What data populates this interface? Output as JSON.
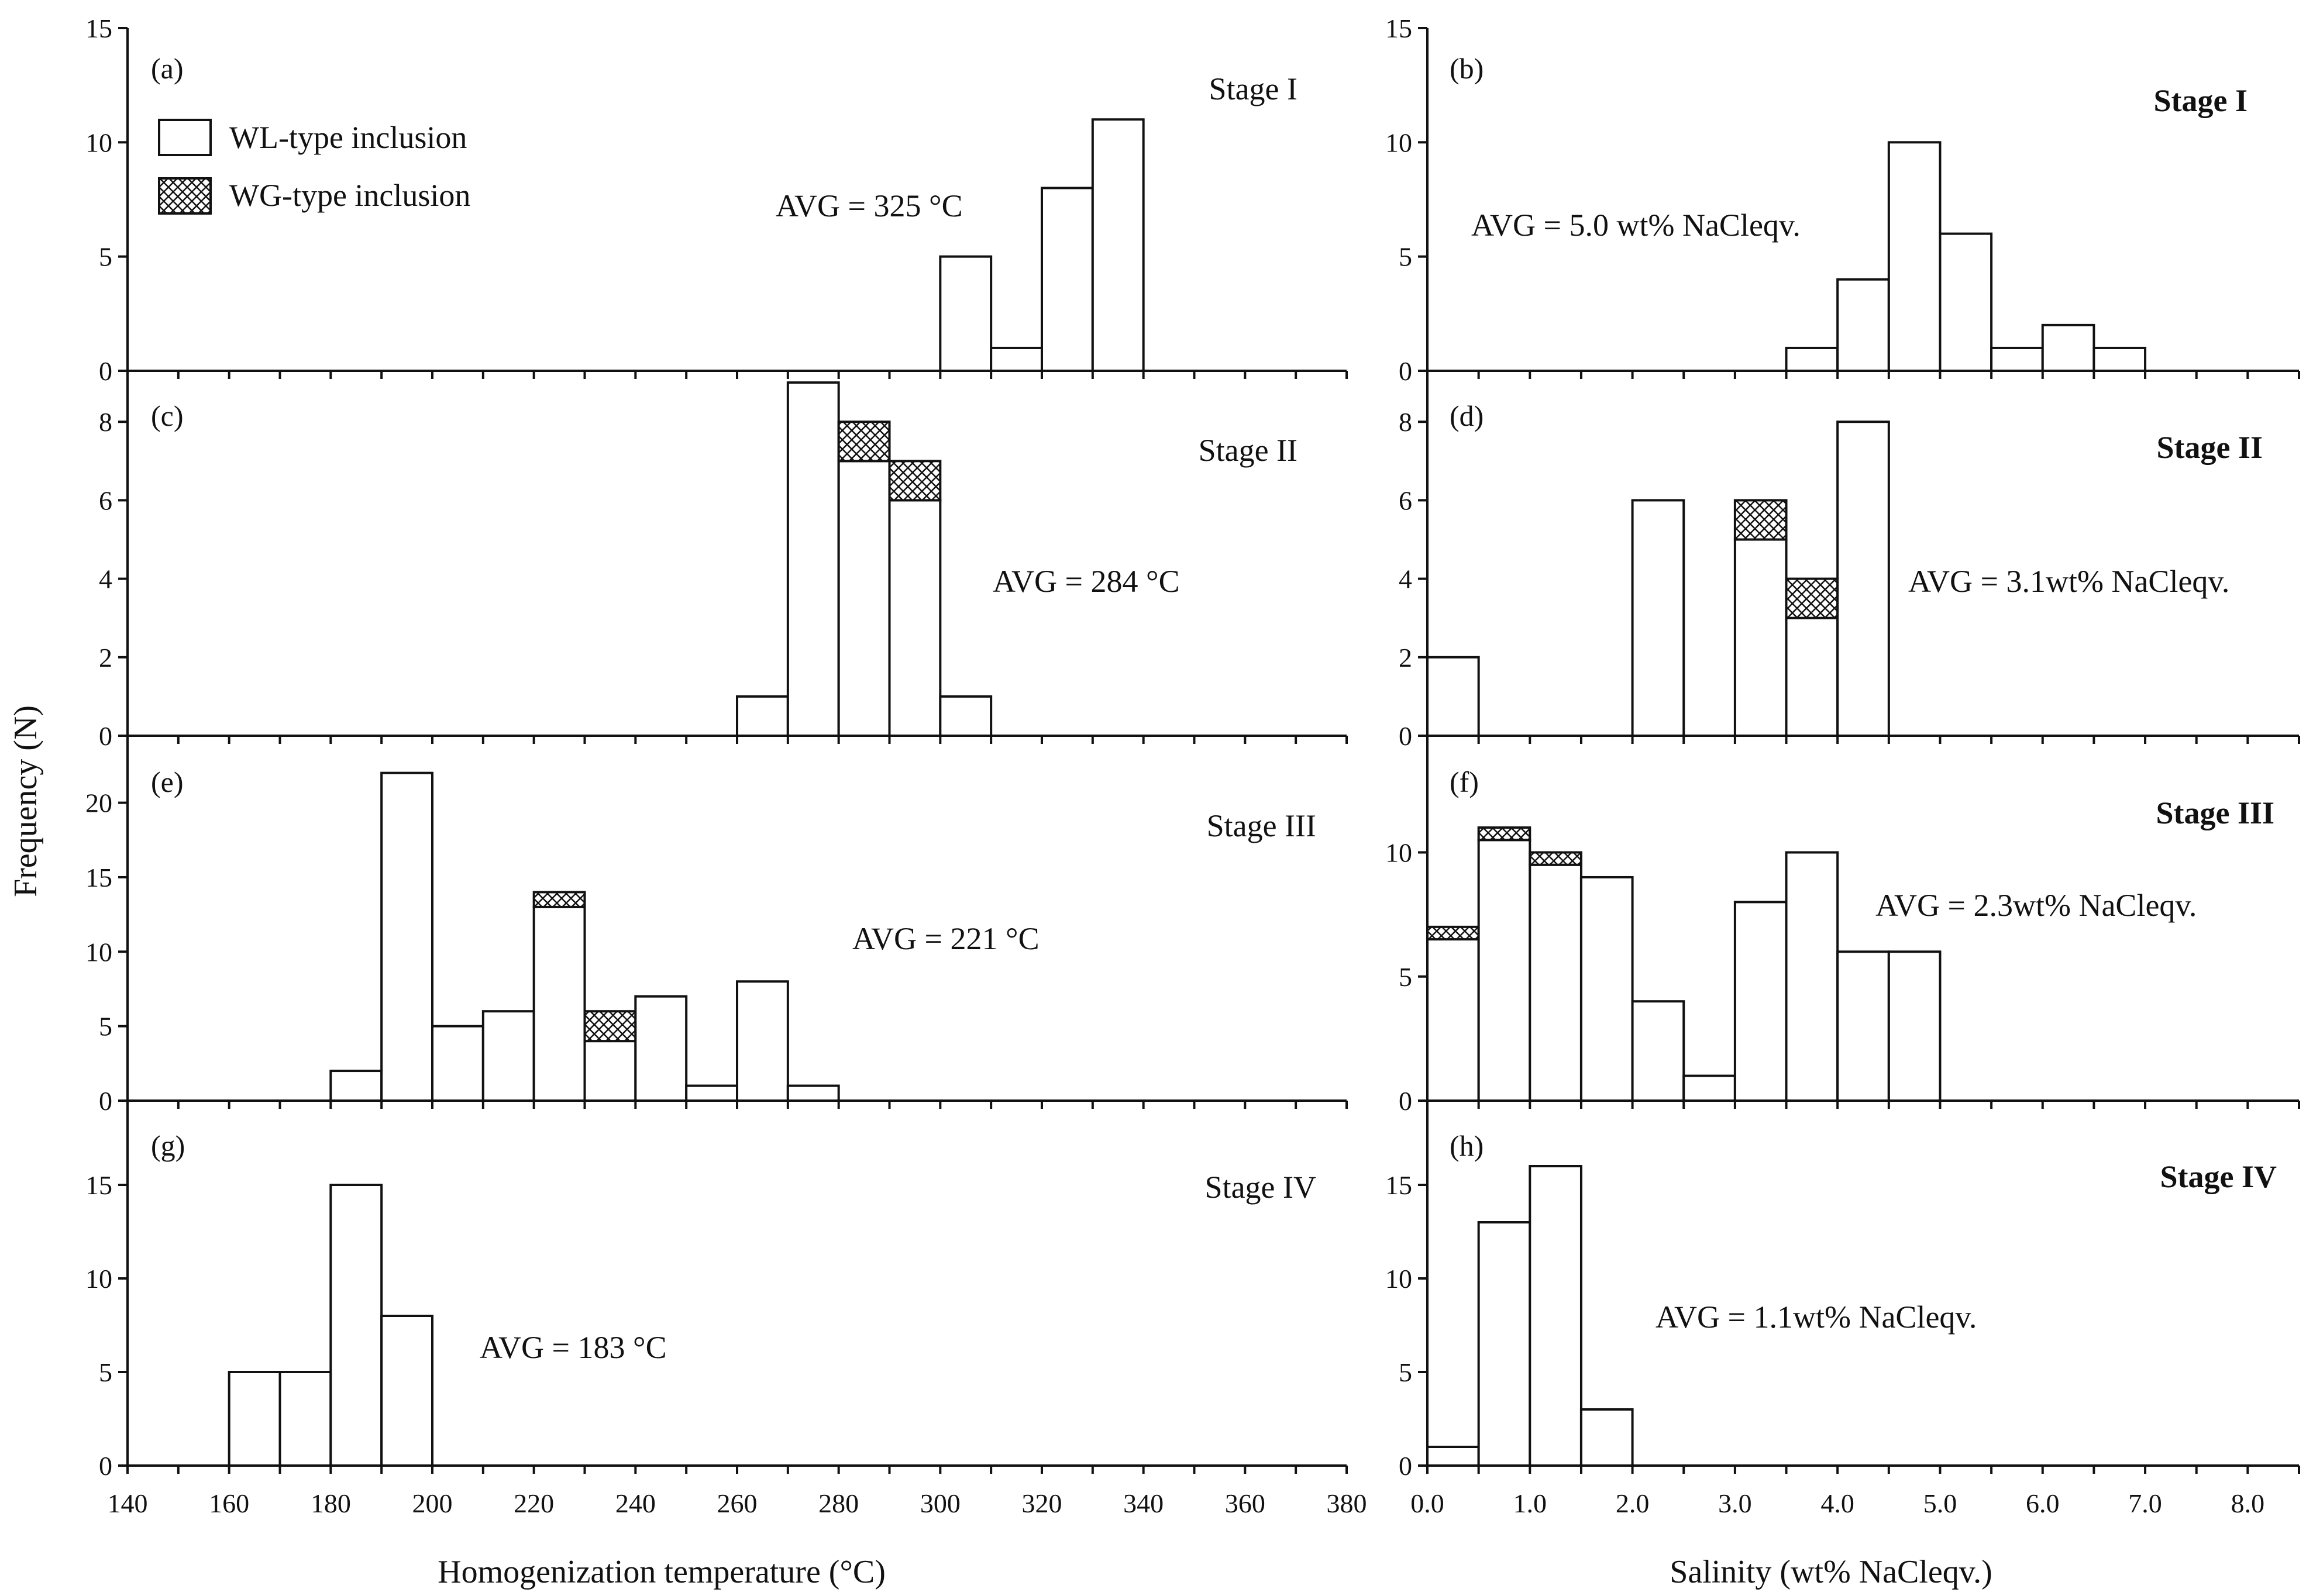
{
  "colors": {
    "ink": "#111111",
    "background": "#ffffff"
  },
  "legend": {
    "wl_label": "WL-type inclusion",
    "wg_label": "WG-type inclusion"
  },
  "axes": {
    "y_title": "Frequency (N)",
    "left_x_title": "Homogenization temperature (°C)",
    "right_x_title": "Salinity (wt% NaCleqv.)",
    "left_ticks": [
      140,
      160,
      180,
      200,
      220,
      240,
      260,
      280,
      300,
      320,
      340,
      360,
      380
    ],
    "right_ticks": [
      "0.0",
      "1.0",
      "2.0",
      "3.0",
      "4.0",
      "5.0",
      "6.0",
      "7.0",
      "8.0"
    ]
  },
  "chart_data": [
    {
      "id": "a",
      "type": "bar",
      "panel_label": "(a)",
      "stage": "Stage I",
      "avg_text": "AVG =  325 °C",
      "xlabel": "Homogenization temperature (°C)",
      "ylabel": "Frequency (N)",
      "xlim": [
        140,
        380
      ],
      "bin_width": 10,
      "ylim": [
        0,
        15
      ],
      "yticks": [
        0,
        5,
        10,
        15
      ],
      "series": [
        {
          "name": "WL-type inclusion",
          "bins": [
            [
              300,
              5
            ],
            [
              310,
              1
            ],
            [
              320,
              8
            ],
            [
              330,
              11
            ]
          ]
        },
        {
          "name": "WG-type inclusion",
          "bins": []
        }
      ]
    },
    {
      "id": "b",
      "type": "bar",
      "panel_label": "(b)",
      "stage": "Stage I",
      "avg_text": "AVG = 5.0 wt% NaCleqv.",
      "xlabel": "Salinity (wt% NaCleqv.)",
      "ylabel": "Frequency (N)",
      "xlim": [
        0,
        8.5
      ],
      "bin_width": 0.5,
      "ylim": [
        0,
        15
      ],
      "yticks": [
        0,
        5,
        10,
        15
      ],
      "series": [
        {
          "name": "WL-type inclusion",
          "bins": [
            [
              3.5,
              1
            ],
            [
              4.0,
              4
            ],
            [
              4.5,
              10
            ],
            [
              5.0,
              6
            ],
            [
              5.5,
              1
            ],
            [
              6.0,
              2
            ],
            [
              6.5,
              1
            ]
          ]
        },
        {
          "name": "WG-type inclusion",
          "bins": []
        }
      ]
    },
    {
      "id": "c",
      "type": "bar",
      "panel_label": "(c)",
      "stage": "Stage II",
      "avg_text": "AVG = 284 °C",
      "xlabel": "Homogenization temperature (°C)",
      "ylabel": "Frequency (N)",
      "xlim": [
        140,
        380
      ],
      "bin_width": 10,
      "ylim": [
        0,
        9.3
      ],
      "yticks": [
        0,
        2,
        4,
        6,
        8
      ],
      "series": [
        {
          "name": "WL-type inclusion",
          "bins": [
            [
              260,
              1
            ],
            [
              270,
              9
            ],
            [
              280,
              7
            ],
            [
              290,
              6
            ],
            [
              300,
              1
            ]
          ]
        },
        {
          "name": "WG-type inclusion",
          "bins": [
            [
              280,
              1
            ],
            [
              290,
              1
            ]
          ]
        }
      ]
    },
    {
      "id": "d",
      "type": "bar",
      "panel_label": "(d)",
      "stage": "Stage II",
      "avg_text": "AVG = 3.1wt% NaCleqv.",
      "xlabel": "Salinity (wt% NaCleqv.)",
      "ylabel": "Frequency (N)",
      "xlim": [
        0,
        8.5
      ],
      "bin_width": 0.5,
      "ylim": [
        0,
        9.3
      ],
      "yticks": [
        0,
        2,
        4,
        6,
        8
      ],
      "series": [
        {
          "name": "WL-type inclusion",
          "bins": [
            [
              0.0,
              2
            ],
            [
              2.0,
              6
            ],
            [
              3.0,
              5
            ],
            [
              3.5,
              3
            ],
            [
              4.0,
              8
            ]
          ]
        },
        {
          "name": "WG-type inclusion",
          "bins": [
            [
              3.0,
              1
            ],
            [
              3.5,
              1
            ]
          ]
        }
      ]
    },
    {
      "id": "e",
      "type": "bar",
      "panel_label": "(e)",
      "stage": "Stage III",
      "avg_text": "AVG = 221 °C",
      "xlabel": "Homogenization temperature (°C)",
      "ylabel": "Frequency (N)",
      "xlim": [
        140,
        380
      ],
      "bin_width": 10,
      "ylim": [
        0,
        24.5
      ],
      "yticks": [
        0,
        5,
        10,
        15,
        20
      ],
      "series": [
        {
          "name": "WL-type inclusion",
          "bins": [
            [
              180,
              2
            ],
            [
              190,
              22
            ],
            [
              200,
              5
            ],
            [
              210,
              6
            ],
            [
              220,
              13
            ],
            [
              230,
              4
            ],
            [
              240,
              7
            ],
            [
              250,
              1
            ],
            [
              260,
              8
            ],
            [
              270,
              1
            ]
          ]
        },
        {
          "name": "WG-type inclusion",
          "bins": [
            [
              220,
              1
            ],
            [
              230,
              2
            ]
          ]
        }
      ]
    },
    {
      "id": "f",
      "type": "bar",
      "panel_label": "(f)",
      "stage": "Stage III",
      "avg_text": "AVG = 2.3wt% NaCleqv.",
      "xlabel": "Salinity (wt% NaCleqv.)",
      "ylabel": "Frequency (N)",
      "xlim": [
        0,
        8.5
      ],
      "bin_width": 0.5,
      "ylim": [
        0,
        14.7
      ],
      "yticks": [
        0,
        5,
        10
      ],
      "series": [
        {
          "name": "WL-type inclusion",
          "bins": [
            [
              0.0,
              6.5
            ],
            [
              0.5,
              10.5
            ],
            [
              1.0,
              9.5
            ],
            [
              1.5,
              9
            ],
            [
              2.0,
              4
            ],
            [
              2.5,
              1
            ],
            [
              3.0,
              8
            ],
            [
              3.5,
              10
            ],
            [
              4.0,
              6
            ],
            [
              4.5,
              6
            ]
          ]
        },
        {
          "name": "WG-type inclusion",
          "bins": [
            [
              0.0,
              0.5
            ],
            [
              0.5,
              0.5
            ],
            [
              1.0,
              0.5
            ]
          ]
        }
      ]
    },
    {
      "id": "g",
      "type": "bar",
      "panel_label": "(g)",
      "stage": "Stage IV",
      "avg_text": "AVG = 183 °C",
      "xlabel": "Homogenization temperature (°C)",
      "ylabel": "Frequency (N)",
      "xlim": [
        140,
        380
      ],
      "bin_width": 10,
      "ylim": [
        0,
        19.5
      ],
      "yticks": [
        0,
        5,
        10,
        15
      ],
      "series": [
        {
          "name": "WL-type inclusion",
          "bins": [
            [
              160,
              5
            ],
            [
              170,
              5
            ],
            [
              180,
              15
            ],
            [
              190,
              8
            ]
          ]
        },
        {
          "name": "WG-type inclusion",
          "bins": []
        }
      ]
    },
    {
      "id": "h",
      "type": "bar",
      "panel_label": "(h)",
      "stage": "Stage IV",
      "avg_text": "AVG = 1.1wt% NaCleqv.",
      "xlabel": "Salinity (wt% NaCleqv.)",
      "ylabel": "Frequency (N)",
      "xlim": [
        0,
        8.5
      ],
      "bin_width": 0.5,
      "ylim": [
        0,
        19.5
      ],
      "yticks": [
        0,
        5,
        10,
        15
      ],
      "series": [
        {
          "name": "WL-type inclusion",
          "bins": [
            [
              0.0,
              1
            ],
            [
              0.5,
              13
            ],
            [
              1.0,
              16
            ],
            [
              1.5,
              3
            ]
          ]
        },
        {
          "name": "WG-type inclusion",
          "bins": []
        }
      ]
    }
  ]
}
